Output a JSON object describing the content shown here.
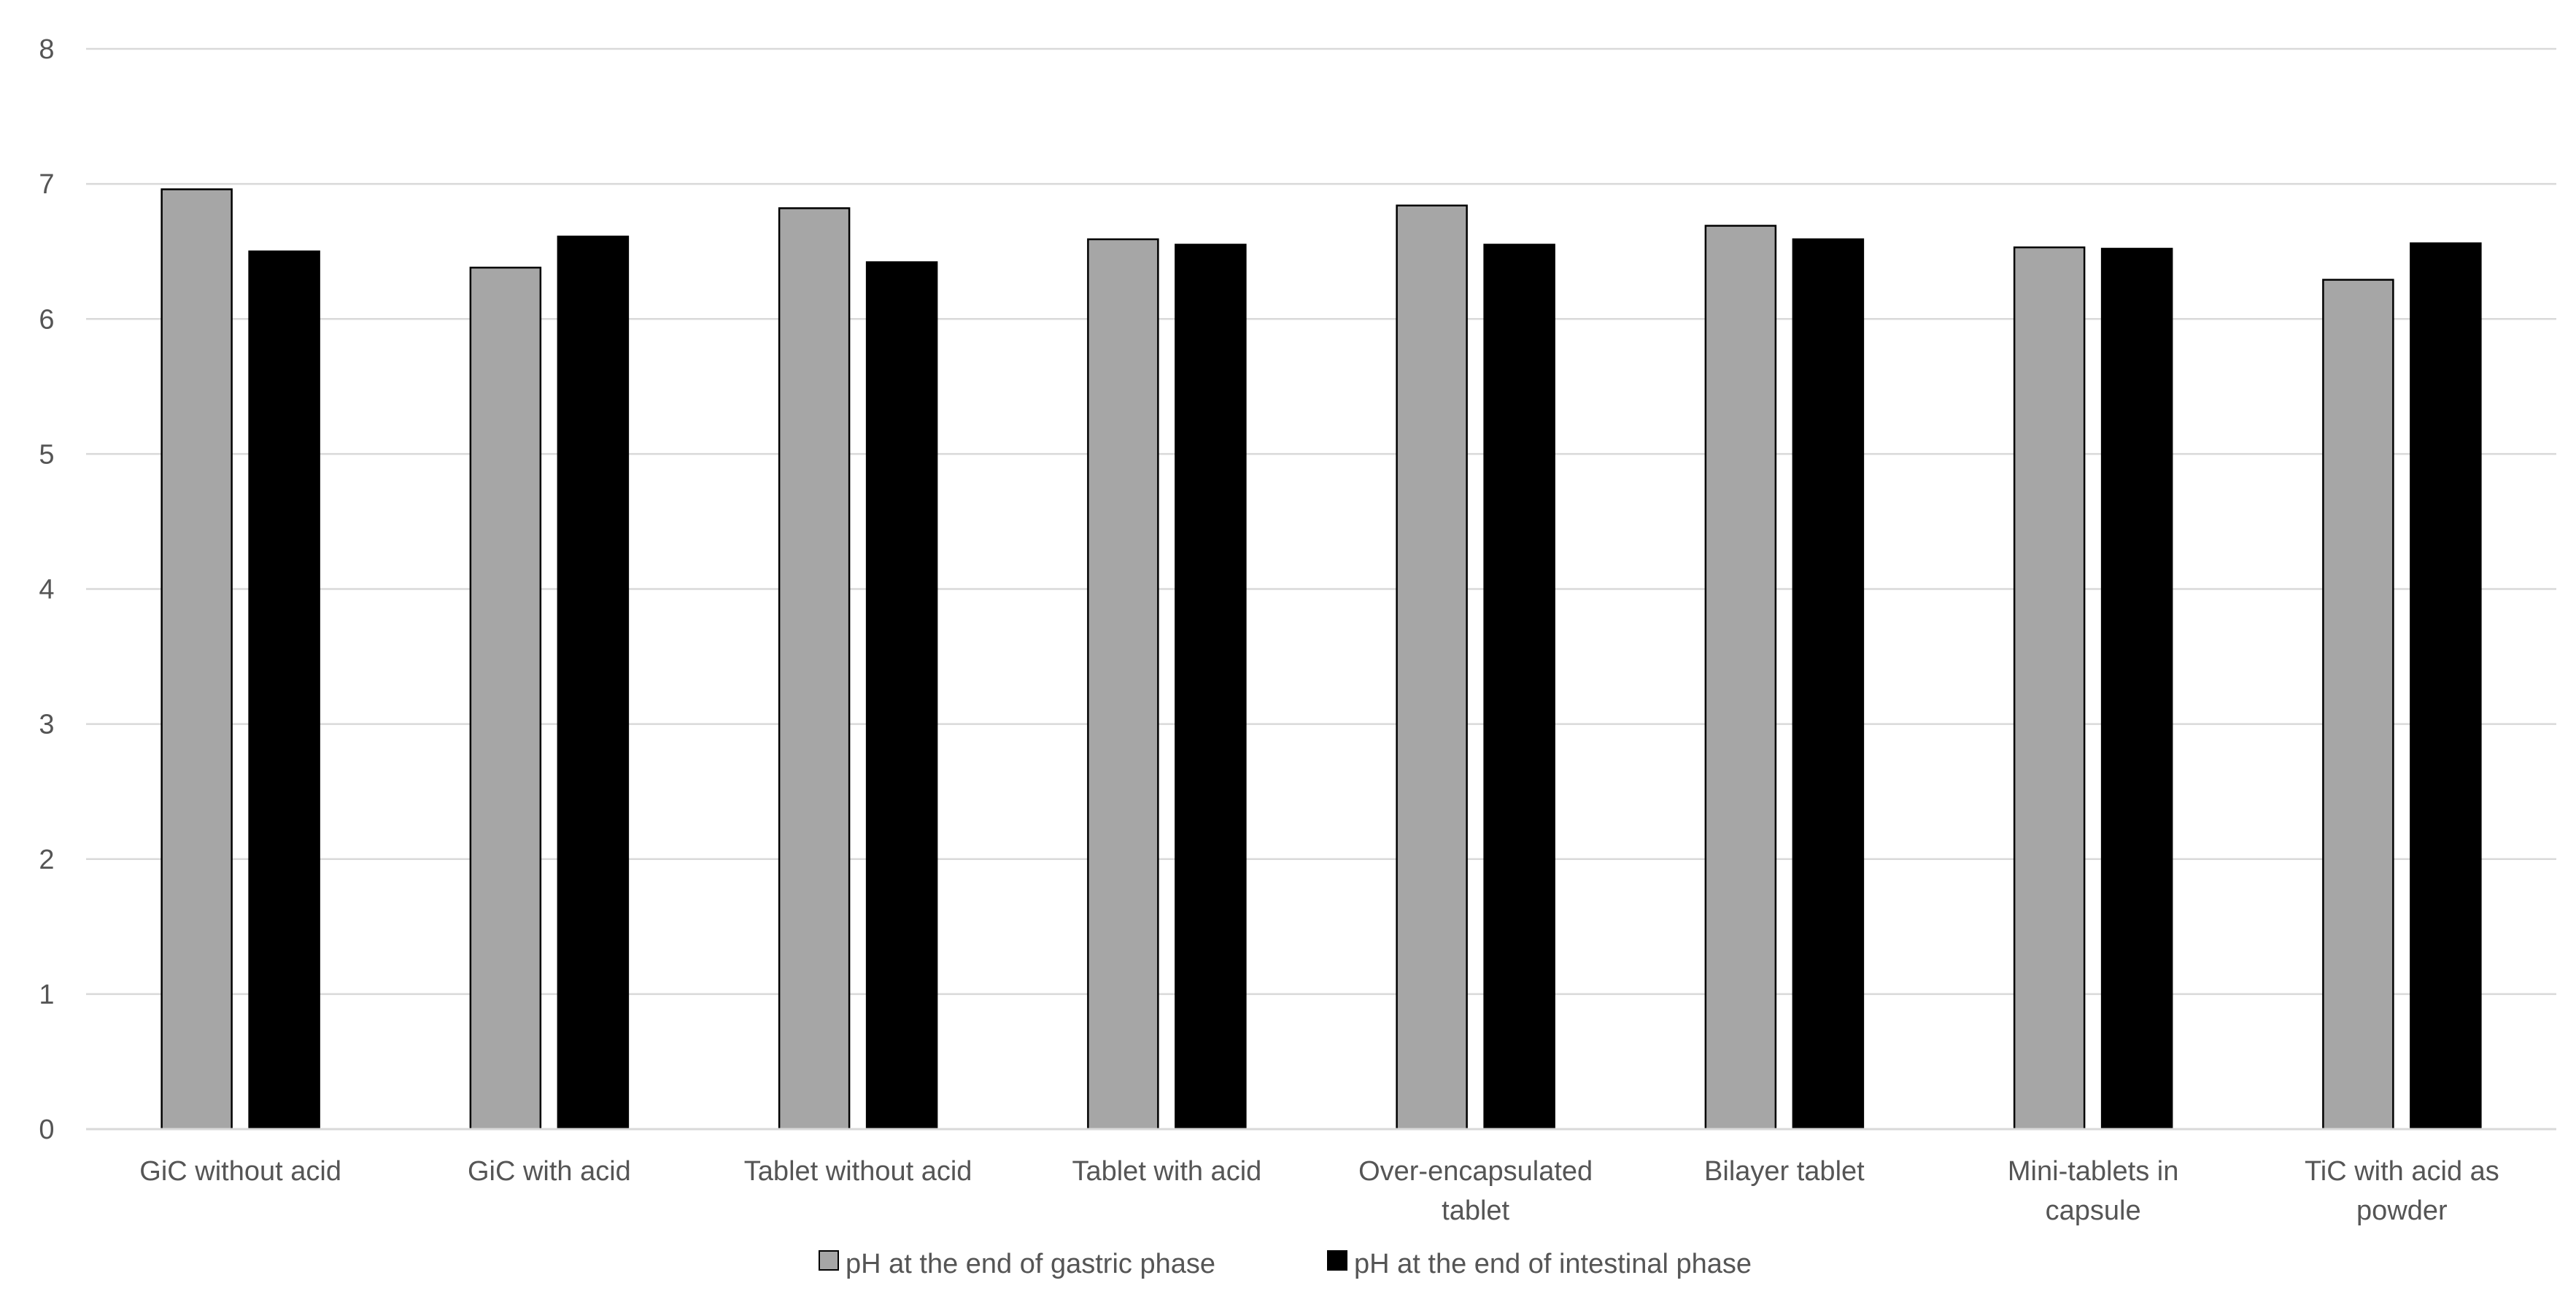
{
  "chart_data": {
    "type": "bar",
    "title": "",
    "xlabel": "",
    "ylabel": "",
    "ylim": [
      0,
      8
    ],
    "yticks": [
      "0",
      "1",
      "2",
      "3",
      "4",
      "5",
      "6",
      "7",
      "8"
    ],
    "grid": true,
    "legend_position": "bottom",
    "categories": [
      [
        "GiC without acid"
      ],
      [
        "GiC with acid"
      ],
      [
        "Tablet without acid"
      ],
      [
        "Tablet with acid"
      ],
      [
        "Over-encapsulated",
        "tablet"
      ],
      [
        "Bilayer tablet"
      ],
      [
        "Mini-tablets in",
        "capsule"
      ],
      [
        "TiC with acid as",
        "powder"
      ]
    ],
    "series": [
      {
        "name": "pH at the end of gastric phase",
        "color": "#a6a6a6",
        "values": [
          6.96,
          6.38,
          6.82,
          6.59,
          6.84,
          6.69,
          6.53,
          6.29
        ]
      },
      {
        "name": "pH at the end of intestinal phase",
        "color": "#000000",
        "values": [
          6.5,
          6.61,
          6.42,
          6.55,
          6.55,
          6.59,
          6.52,
          6.56
        ]
      }
    ]
  }
}
